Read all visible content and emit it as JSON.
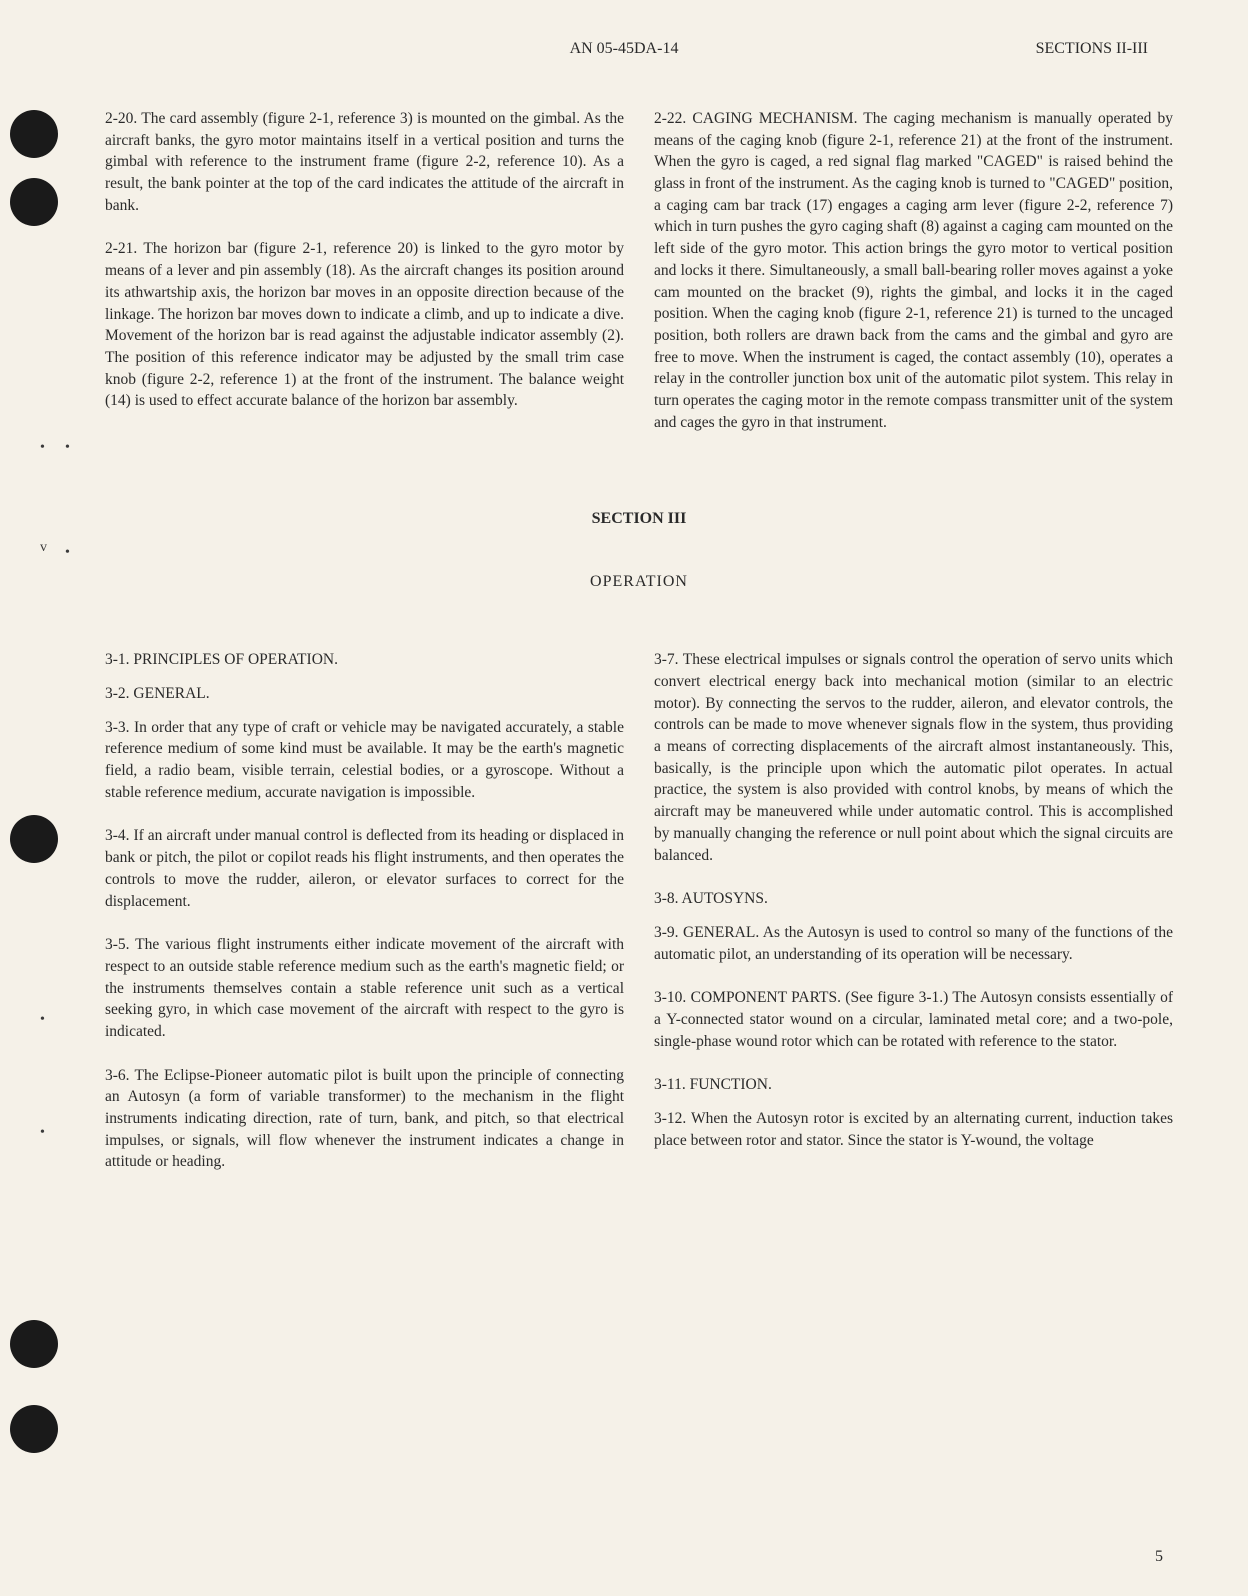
{
  "header": {
    "center": "AN 05-45DA-14",
    "right": "SECTIONS II-III"
  },
  "upperSection": {
    "leftColumn": {
      "para1": "2-20. The card assembly (figure 2-1, reference 3) is mounted on the gimbal. As the aircraft banks, the gyro motor maintains itself in a vertical position and turns the gimbal with reference to the instrument frame (figure 2-2, reference 10). As a result, the bank pointer at the top of the card indicates the attitude of the aircraft in bank.",
      "para2": "2-21. The horizon bar (figure 2-1, reference 20) is linked to the gyro motor by means of a lever and pin assembly (18). As the aircraft changes its position around its athwartship axis, the horizon bar moves in an opposite direction because of the linkage. The horizon bar moves down to indicate a climb, and up to indicate a dive. Movement of the horizon bar is read against the adjustable indicator assembly (2). The position of this reference indicator may be adjusted by the small trim case knob (figure 2-2, reference 1) at the front of the instrument. The balance weight (14) is used to effect accurate balance of the horizon bar assembly."
    },
    "rightColumn": {
      "para1": "2-22. CAGING MECHANISM. The caging mechanism is manually operated by means of the caging knob (figure 2-1, reference 21) at the front of the instrument. When the gyro is caged, a red signal flag marked \"CAGED\" is raised behind the glass in front of the instrument. As the caging knob is turned to \"CAGED\" position, a caging cam bar track (17) engages a caging arm lever (figure 2-2, reference 7) which in turn pushes the gyro caging shaft (8) against a caging cam mounted on the left side of the gyro motor. This action brings the gyro motor to vertical position and locks it there. Simultaneously, a small ball-bearing roller moves against a yoke cam mounted on the bracket (9), rights the gimbal, and locks it in the caged position. When the caging knob (figure 2-1, reference 21) is turned to the uncaged position, both rollers are drawn back from the cams and the gimbal and gyro are free to move. When the instrument is caged, the contact assembly (10), operates a relay in the controller junction box unit of the automatic pilot system. This relay in turn operates the caging motor in the remote compass transmitter unit of the system and cages the gyro in that instrument."
    }
  },
  "sectionHeading": "SECTION III",
  "sectionTitle": "OPERATION",
  "lowerSection": {
    "leftColumn": {
      "subhead1": "3-1. PRINCIPLES OF OPERATION.",
      "subhead2": "3-2. GENERAL.",
      "para1": "3-3. In order that any type of craft or vehicle may be navigated accurately, a stable reference medium of some kind must be available. It may be the earth's magnetic field, a radio beam, visible terrain, celestial bodies, or a gyroscope. Without a stable reference medium, accurate navigation is impossible.",
      "para2": "3-4. If an aircraft under manual control is deflected from its heading or displaced in bank or pitch, the pilot or copilot reads his flight instruments, and then operates the controls to move the rudder, aileron, or elevator surfaces to correct for the displacement.",
      "para3": "3-5. The various flight instruments either indicate movement of the aircraft with respect to an outside stable reference medium such as the earth's magnetic field; or the instruments themselves contain a stable reference unit such as a vertical seeking gyro, in which case movement of the aircraft with respect to the gyro is indicated.",
      "para4": "3-6. The Eclipse-Pioneer automatic pilot is built upon the principle of connecting an Autosyn (a form of variable transformer) to the mechanism in the flight instruments indicating direction, rate of turn, bank, and pitch, so that electrical impulses, or signals, will flow whenever the instrument indicates a change in attitude or heading."
    },
    "rightColumn": {
      "para1": "3-7. These electrical impulses or signals control the operation of servo units which convert electrical energy back into mechanical motion (similar to an electric motor). By connecting the servos to the rudder, aileron, and elevator controls, the controls can be made to move whenever signals flow in the system, thus providing a means of correcting displacements of the aircraft almost instantaneously. This, basically, is the principle upon which the automatic pilot operates. In actual practice, the system is also provided with control knobs, by means of which the aircraft may be maneuvered while under automatic control. This is accomplished by manually changing the reference or null point about which the signal circuits are balanced.",
      "subhead1": "3-8. AUTOSYNS.",
      "para2": "3-9. GENERAL. As the Autosyn is used to control so many of the functions of the automatic pilot, an understanding of its operation will be necessary.",
      "para3": "3-10. COMPONENT PARTS. (See figure 3-1.) The Autosyn consists essentially of a Y-connected stator wound on a circular, laminated metal core; and a two-pole, single-phase wound rotor which can be rotated with reference to the stator.",
      "subhead2": "3-11. FUNCTION.",
      "para4": "3-12. When the Autosyn rotor is excited by an alternating current, induction takes place between rotor and stator. Since the stator is Y-wound, the voltage"
    }
  },
  "pageNumber": "5"
}
